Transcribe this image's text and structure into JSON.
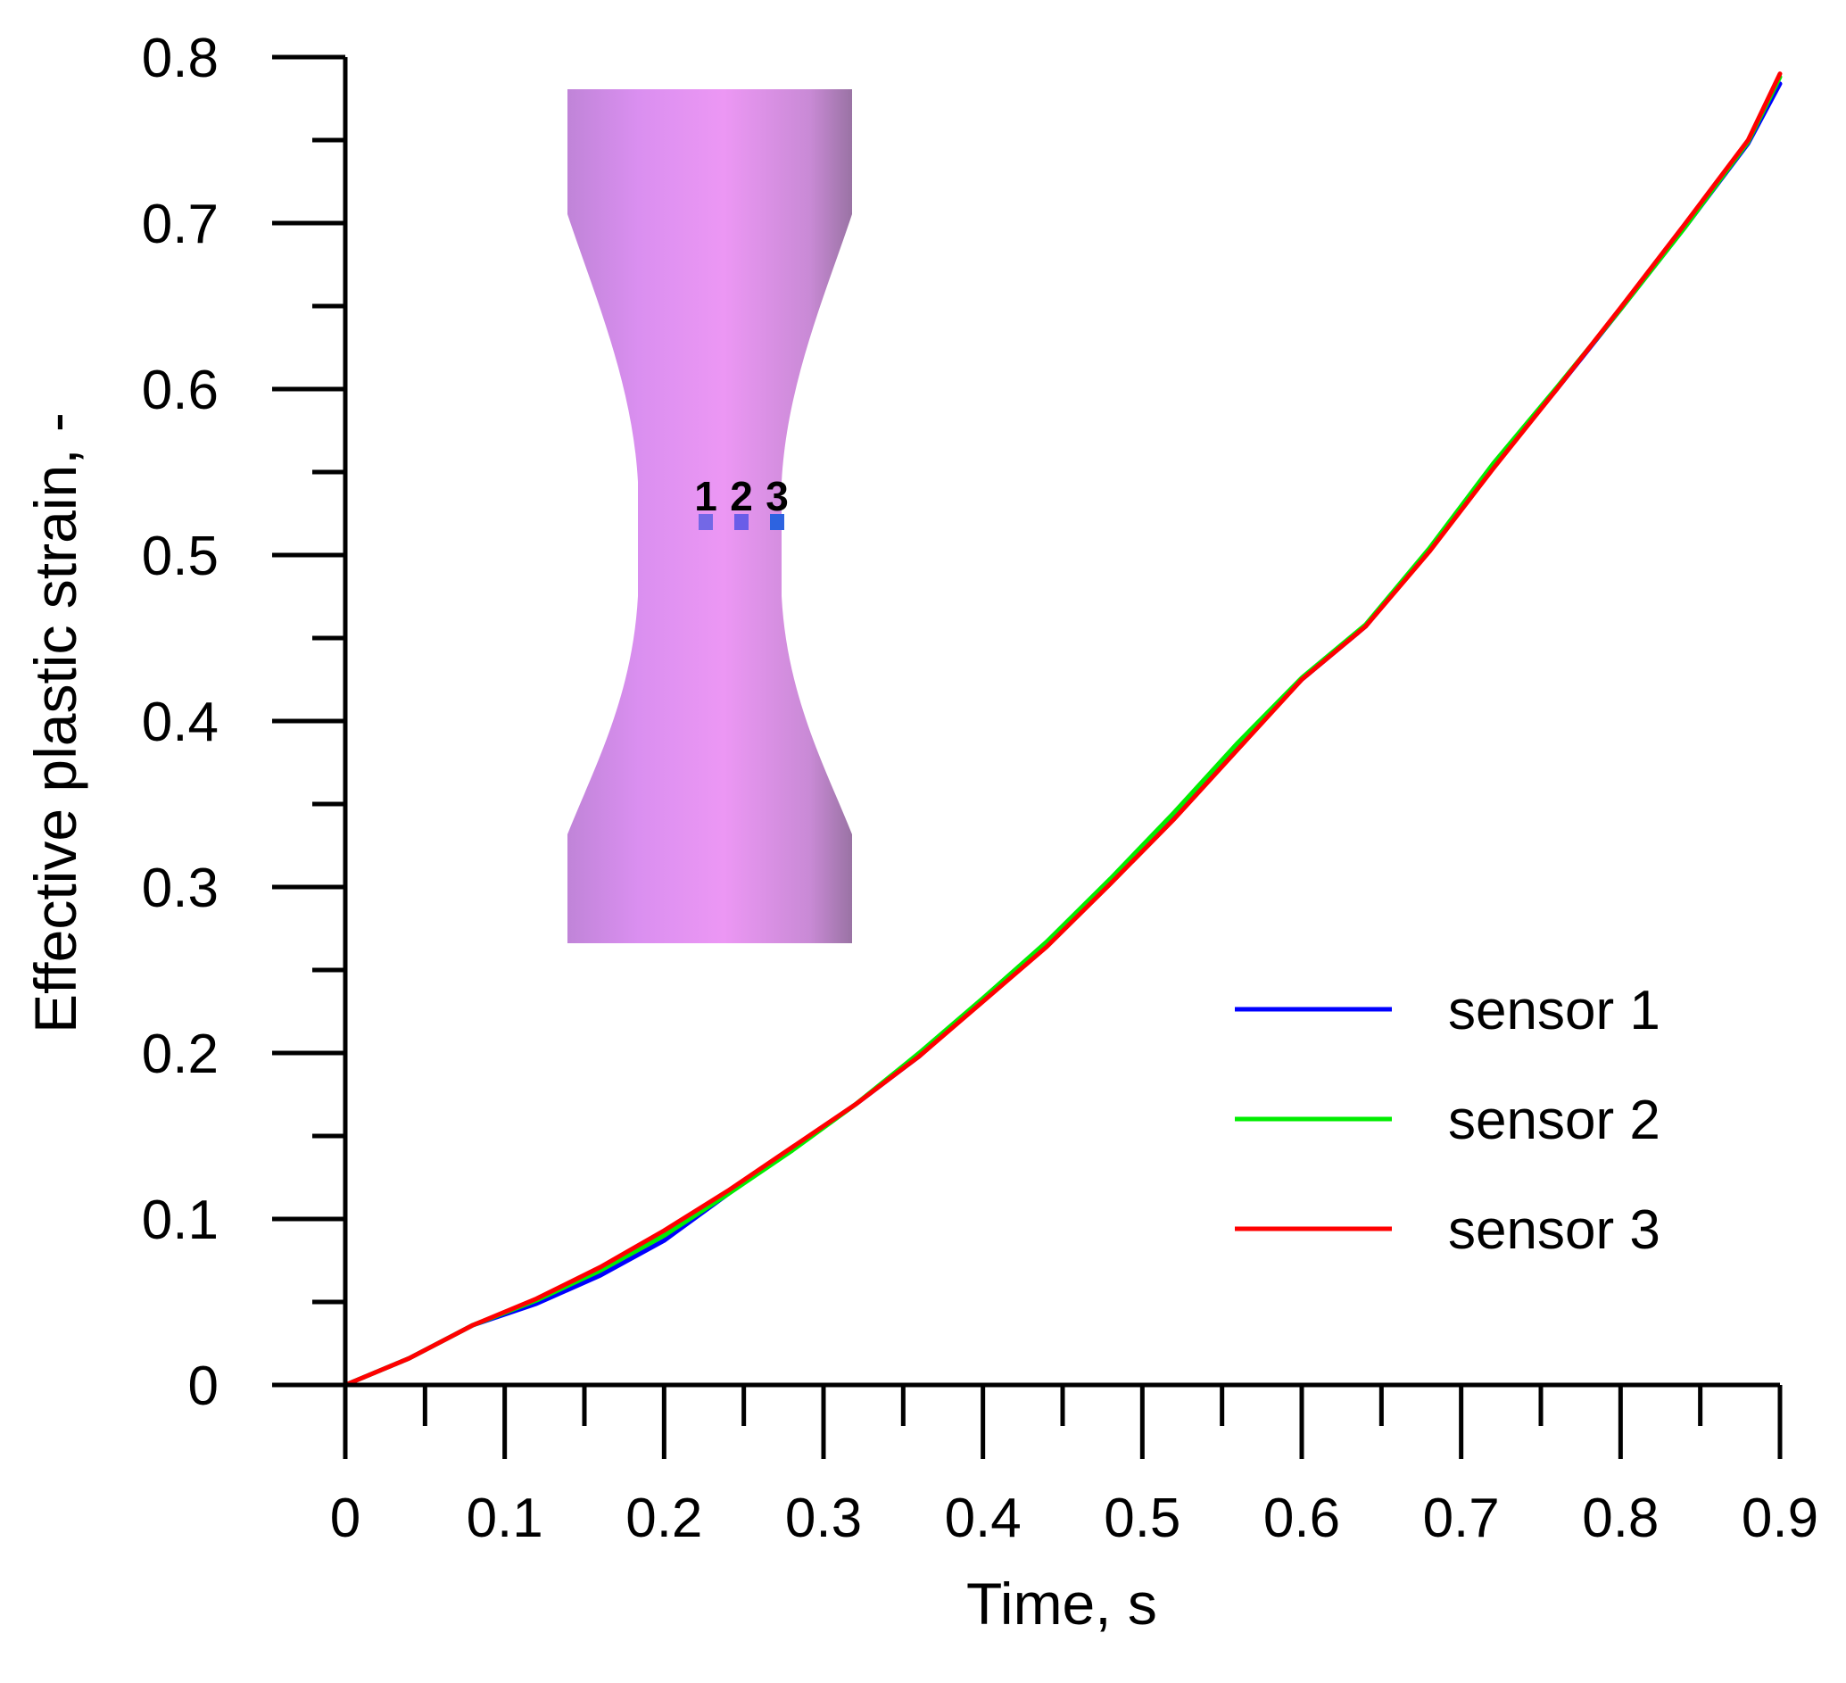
{
  "chart_data": {
    "type": "line",
    "xlabel": "Time, s",
    "ylabel": "Effective plastic strain, -",
    "xlim": [
      0,
      0.9
    ],
    "ylim": [
      0,
      0.8
    ],
    "xticks": [
      "0",
      "0.1",
      "0.2",
      "0.3",
      "0.4",
      "0.5",
      "0.6",
      "0.7",
      "0.8",
      "0.9"
    ],
    "yticks": [
      "0",
      "0.1",
      "0.2",
      "0.3",
      "0.4",
      "0.5",
      "0.6",
      "0.7",
      "0.8"
    ],
    "grid": false,
    "legend_position": "bottom-right",
    "series": [
      {
        "name": "sensor 1",
        "color": "#0000ff",
        "x": [
          0,
          0.04,
          0.08,
          0.12,
          0.16,
          0.2,
          0.24,
          0.28,
          0.32,
          0.36,
          0.4,
          0.44,
          0.48,
          0.52,
          0.56,
          0.6,
          0.64,
          0.68,
          0.72,
          0.76,
          0.8,
          0.84,
          0.88,
          0.9
        ],
        "values": [
          0,
          0.016,
          0.036,
          0.049,
          0.066,
          0.087,
          0.115,
          0.142,
          0.169,
          0.198,
          0.232,
          0.266,
          0.304,
          0.343,
          0.386,
          0.425,
          0.457,
          0.503,
          0.553,
          0.6,
          0.648,
          0.697,
          0.748,
          0.784
        ]
      },
      {
        "name": "sensor 2",
        "color": "#00ee00",
        "x": [
          0,
          0.04,
          0.08,
          0.12,
          0.16,
          0.2,
          0.24,
          0.28,
          0.32,
          0.36,
          0.4,
          0.44,
          0.48,
          0.52,
          0.56,
          0.6,
          0.64,
          0.68,
          0.72,
          0.76,
          0.8,
          0.84,
          0.88,
          0.9
        ],
        "values": [
          0,
          0.016,
          0.036,
          0.051,
          0.069,
          0.09,
          0.115,
          0.141,
          0.169,
          0.2,
          0.233,
          0.267,
          0.305,
          0.345,
          0.387,
          0.426,
          0.458,
          0.504,
          0.555,
          0.601,
          0.648,
          0.697,
          0.749,
          0.788
        ]
      },
      {
        "name": "sensor 3",
        "color": "#ff0000",
        "x": [
          0,
          0.04,
          0.08,
          0.12,
          0.16,
          0.2,
          0.24,
          0.28,
          0.32,
          0.36,
          0.4,
          0.44,
          0.48,
          0.52,
          0.56,
          0.6,
          0.64,
          0.68,
          0.72,
          0.76,
          0.8,
          0.84,
          0.88,
          0.9
        ],
        "values": [
          0,
          0.016,
          0.036,
          0.052,
          0.071,
          0.093,
          0.117,
          0.143,
          0.169,
          0.198,
          0.231,
          0.264,
          0.302,
          0.341,
          0.383,
          0.425,
          0.457,
          0.502,
          0.552,
          0.6,
          0.649,
          0.699,
          0.75,
          0.79
        ]
      }
    ],
    "annotations": [
      "1",
      "2",
      "3"
    ]
  },
  "inset": {
    "body_color": "#e27de8",
    "marker_color": "#6a5de8"
  }
}
